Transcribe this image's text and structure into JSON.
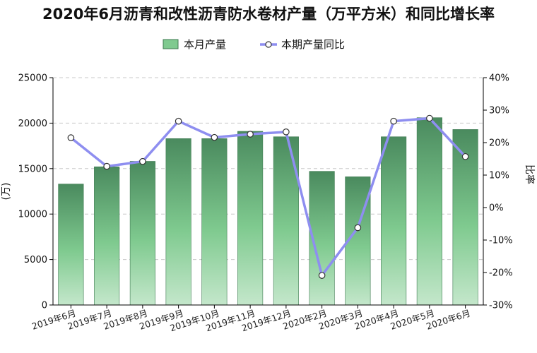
{
  "chart_data": {
    "type": "bar",
    "title": "2020年6月沥青和改性沥青防水卷材产量（万平方米）和同比增长率",
    "categories": [
      "2019年6月",
      "2019年7月",
      "2019年8月",
      "2019年9月",
      "2019年10月",
      "2019年11月",
      "2019年12月",
      "2020年2月",
      "2020年3月",
      "2020年4月",
      "2020年5月",
      "2020年6月"
    ],
    "series": [
      {
        "name": "本月产量",
        "type": "bar",
        "axis": "left",
        "values": [
          13300,
          15200,
          15800,
          18300,
          18300,
          19100,
          18500,
          14700,
          14100,
          18500,
          20600,
          19300
        ],
        "color": "#5fa875"
      },
      {
        "name": "本期产量同比",
        "type": "line",
        "axis": "right",
        "values": [
          21.5,
          12.7,
          14.2,
          26.6,
          21.6,
          22.6,
          23.3,
          -20.9,
          -6.2,
          26.6,
          27.5,
          15.7
        ],
        "color": "#8e8ef0"
      }
    ],
    "ylabel_left": "(万)",
    "ylabel_right": "比率",
    "ylim_left": [
      0,
      25000
    ],
    "yticks_left": [
      "0",
      "5000",
      "10000",
      "15000",
      "20000",
      "25000"
    ],
    "ylim_right": [
      -30,
      40
    ],
    "yticks_right": [
      "-30%",
      "-20%",
      "-10%",
      "0%",
      "10%",
      "20%",
      "30%",
      "40%"
    ],
    "grid": true,
    "legend_position": "top-center"
  }
}
